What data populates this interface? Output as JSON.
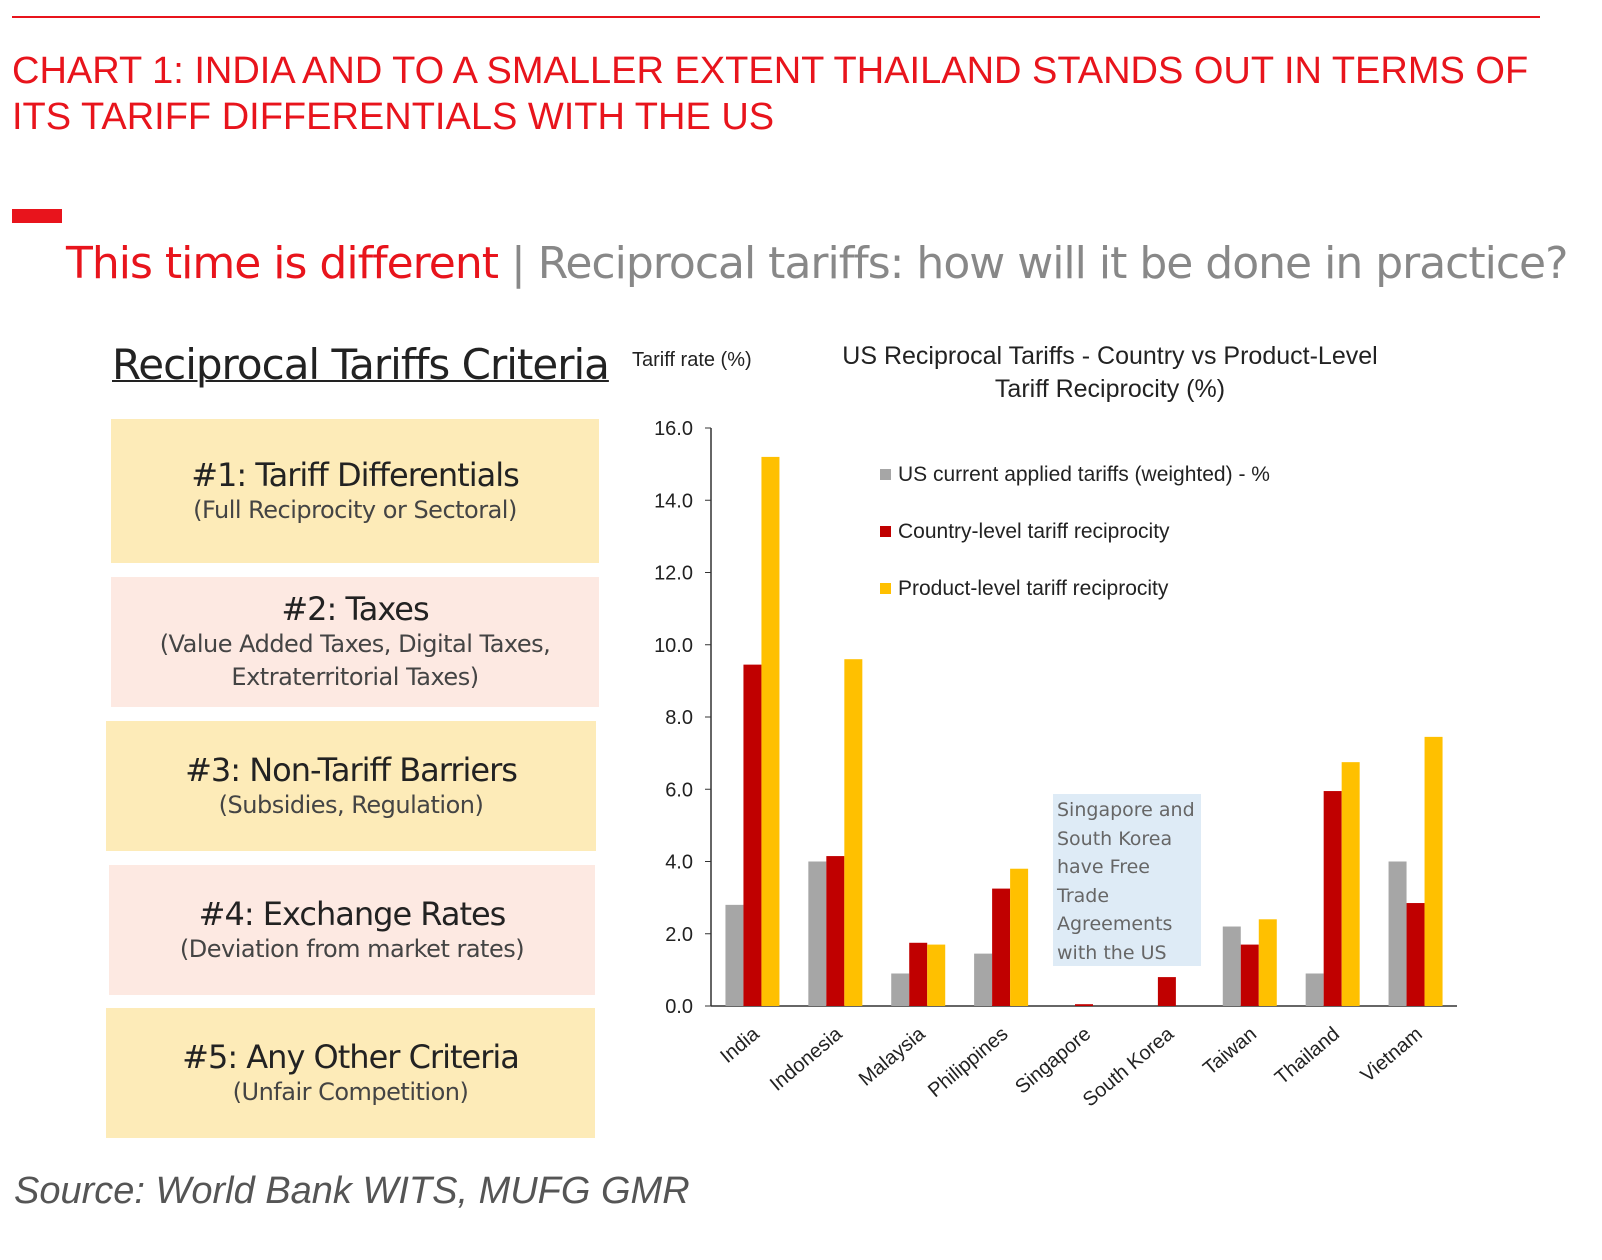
{
  "header": {
    "title": "CHART 1: INDIA AND TO A SMALLER EXTENT THAILAND STANDS OUT IN TERMS OF ITS TARIFF DIFFERENTIALS WITH THE US"
  },
  "subtitle": {
    "red": "This time is different",
    "sep": " | ",
    "grey": "Reciprocal tariffs: how will it be done in practice?"
  },
  "criteria": {
    "title": "Reciprocal Tariffs Criteria",
    "items": [
      {
        "heading": "#1: Tariff Differentials",
        "detail": "(Full Reciprocity or Sectoral)"
      },
      {
        "heading": "#2: Taxes",
        "detail": "(Value Added Taxes, Digital Taxes, Extraterritorial Taxes)"
      },
      {
        "heading": "#3: Non-Tariff Barriers",
        "detail": "(Subsidies, Regulation)"
      },
      {
        "heading": "#4: Exchange Rates",
        "detail": "(Deviation from market rates)"
      },
      {
        "heading": "#5: Any Other Criteria",
        "detail": "(Unfair Competition)"
      }
    ]
  },
  "chart_data": {
    "type": "bar",
    "title": "US Reciprocal Tariffs - Country vs Product-Level Tariff Reciprocity (%)",
    "title_lines": [
      "US Reciprocal Tariffs - Country vs Product-Level",
      "Tariff Reciprocity (%)"
    ],
    "ylabel": "Tariff rate (%)",
    "xlabel": "",
    "ylim": [
      0,
      16
    ],
    "yticks": [
      "0.0",
      "2.0",
      "4.0",
      "6.0",
      "8.0",
      "10.0",
      "12.0",
      "14.0",
      "16.0"
    ],
    "grid": false,
    "legend_position": "top-right",
    "categories": [
      "India",
      "Indonesia",
      "Malaysia",
      "Philippines",
      "Singapore",
      "South Korea",
      "Taiwan",
      "Thailand",
      "Vietnam"
    ],
    "series": [
      {
        "name": "US current applied tariffs (weighted) - %",
        "color": "#a6a6a6",
        "values": [
          2.8,
          4.0,
          0.9,
          1.45,
          0,
          0,
          2.2,
          0.9,
          4.0
        ]
      },
      {
        "name": "Country-level tariff reciprocity",
        "color": "#c00000",
        "values": [
          9.45,
          4.15,
          1.75,
          3.25,
          0.05,
          0.8,
          1.7,
          5.95,
          2.85
        ]
      },
      {
        "name": "Product-level tariff reciprocity",
        "color": "#ffc000",
        "values": [
          15.2,
          9.6,
          1.7,
          3.8,
          0,
          0,
          2.4,
          6.75,
          7.45
        ]
      }
    ],
    "annotation": "Singapore and South Korea have Free Trade Agreements with the US",
    "annotation_lines": [
      "Singapore and",
      "South Korea",
      "have Free",
      "Trade",
      "Agreements",
      "with the US"
    ]
  },
  "source": "Source: World Bank WITS, MUFG GMR"
}
